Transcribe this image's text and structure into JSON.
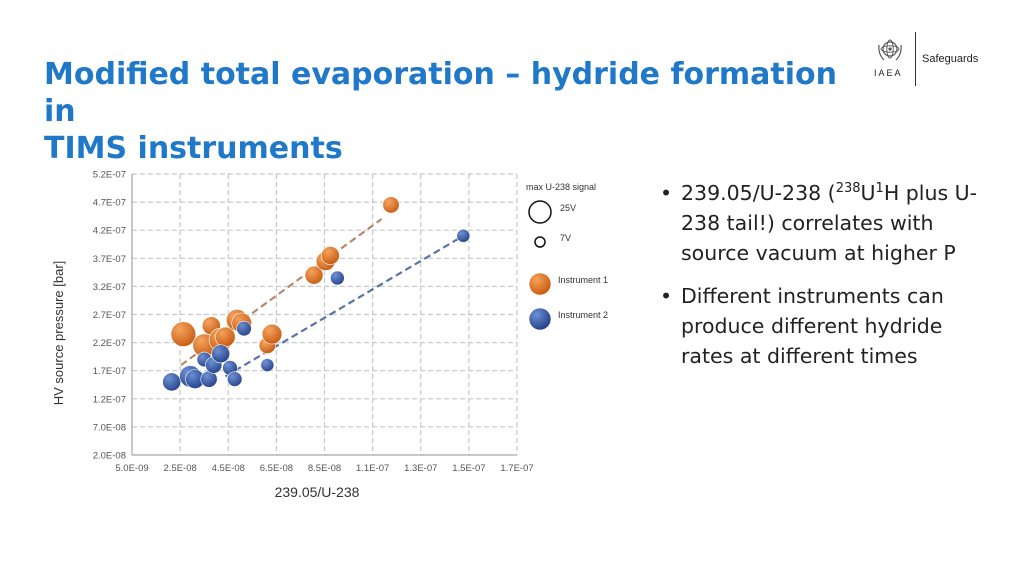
{
  "slide": {
    "title_line1": "Modified total evaporation – hydride formation in",
    "title_line2": "TIMS instruments"
  },
  "logo": {
    "org": "IAEA",
    "section": "Safeguards",
    "emblem_icon": "iaea-emblem-icon"
  },
  "bullets": [
    {
      "pre": "239.05/U-238 (",
      "sup1": "238",
      "mid": "U",
      "sup2": "1",
      "post": "H plus U-238 tail!) correlates with source vacuum at higher P"
    },
    {
      "text": "Different instruments can produce different hydride rates at different times"
    }
  ],
  "chart_data": {
    "type": "scatter",
    "xlabel": "239.05/U-238",
    "ylabel": "HV source pressure [bar]",
    "x_ticks": [
      "5.0E-09",
      "2.5E-08",
      "4.5E-08",
      "6.5E-08",
      "8.5E-08",
      "1.1E-07",
      "1.3E-07",
      "1.5E-07",
      "1.7E-07"
    ],
    "y_ticks": [
      "2.0E-08",
      "7.0E-08",
      "1.2E-07",
      "1.7E-07",
      "2.2E-07",
      "2.7E-07",
      "3.2E-07",
      "3.7E-07",
      "4.2E-07",
      "4.7E-07",
      "5.2E-07"
    ],
    "xlim": [
      5e-09,
      1.7e-07
    ],
    "ylim": [
      2e-08,
      5.2e-07
    ],
    "grid": true,
    "grid_style": "dashed",
    "legend_title": "max U-238 signal",
    "legend_position": "right",
    "size_legend": [
      {
        "label": "25V",
        "signal": 25
      },
      {
        "label": "7V",
        "signal": 7
      }
    ],
    "series": [
      {
        "name": "Instrument 1",
        "color": "#e87a2a",
        "trendline_color": "#b5896a",
        "trendline": {
          "x": [
            2.6e-08,
            1.12e-07
          ],
          "y": [
            1.8e-07,
            4.4e-07
          ]
        },
        "points": [
          {
            "x": 2.7e-08,
            "y": 2.35e-07,
            "signal": 22
          },
          {
            "x": 3.6e-08,
            "y": 2.15e-07,
            "signal": 20
          },
          {
            "x": 3.9e-08,
            "y": 2.5e-07,
            "signal": 14
          },
          {
            "x": 4.3e-08,
            "y": 2.25e-07,
            "signal": 20
          },
          {
            "x": 4.5e-08,
            "y": 2.3e-07,
            "signal": 16
          },
          {
            "x": 5e-08,
            "y": 2.6e-07,
            "signal": 18
          },
          {
            "x": 5.2e-08,
            "y": 2.55e-07,
            "signal": 16
          },
          {
            "x": 6.3e-08,
            "y": 2.15e-07,
            "signal": 12
          },
          {
            "x": 6.5e-08,
            "y": 2.35e-07,
            "signal": 16
          },
          {
            "x": 8.3e-08,
            "y": 3.4e-07,
            "signal": 14
          },
          {
            "x": 8.8e-08,
            "y": 3.65e-07,
            "signal": 15
          },
          {
            "x": 9e-08,
            "y": 3.75e-07,
            "signal": 14
          },
          {
            "x": 1.16e-07,
            "y": 4.65e-07,
            "signal": 12
          }
        ]
      },
      {
        "name": "Instrument 2",
        "color": "#3d66b8",
        "trendline_color": "#5a73aa",
        "trendline": {
          "x": [
            4.5e-08,
            1.47e-07
          ],
          "y": [
            1.6e-07,
            4.1e-07
          ]
        },
        "points": [
          {
            "x": 2.2e-08,
            "y": 1.5e-07,
            "signal": 14
          },
          {
            "x": 3e-08,
            "y": 1.6e-07,
            "signal": 18
          },
          {
            "x": 3.2e-08,
            "y": 1.55e-07,
            "signal": 15
          },
          {
            "x": 3.6e-08,
            "y": 1.9e-07,
            "signal": 10
          },
          {
            "x": 3.8e-08,
            "y": 1.55e-07,
            "signal": 12
          },
          {
            "x": 4e-08,
            "y": 1.8e-07,
            "signal": 12
          },
          {
            "x": 4.3e-08,
            "y": 2e-07,
            "signal": 14
          },
          {
            "x": 4.7e-08,
            "y": 1.75e-07,
            "signal": 10
          },
          {
            "x": 4.9e-08,
            "y": 1.55e-07,
            "signal": 10
          },
          {
            "x": 5.3e-08,
            "y": 2.45e-07,
            "signal": 10
          },
          {
            "x": 6.3e-08,
            "y": 1.8e-07,
            "signal": 8
          },
          {
            "x": 9.3e-08,
            "y": 3.35e-07,
            "signal": 9
          },
          {
            "x": 1.47e-07,
            "y": 4.1e-07,
            "signal": 8
          }
        ]
      }
    ]
  }
}
